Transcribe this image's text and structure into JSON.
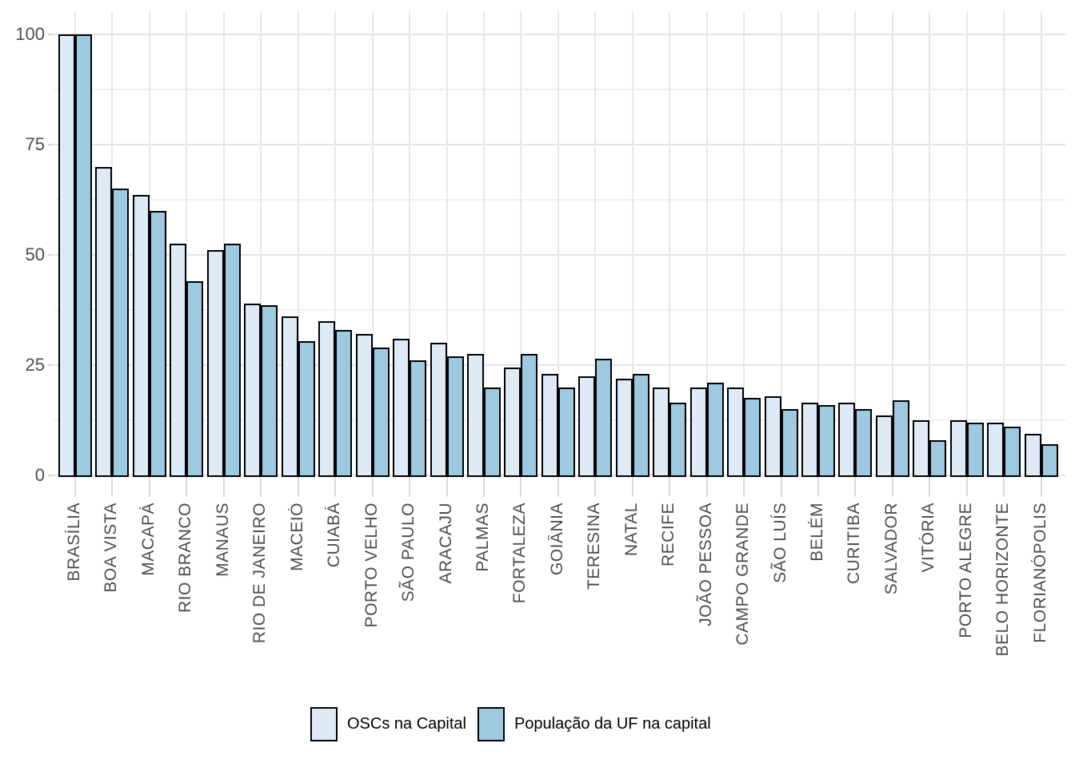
{
  "chart_data": {
    "type": "bar",
    "title": "",
    "xlabel": "",
    "ylabel": "",
    "ylim": [
      0,
      100
    ],
    "yticks": [
      0,
      25,
      50,
      75,
      100
    ],
    "yticks_minor": [
      12.5,
      37.5,
      62.5,
      87.5
    ],
    "grid": "on",
    "legend_position": "bottom",
    "categories": [
      "BRASÍLIA",
      "BOA VISTA",
      "MACAPÁ",
      "RIO BRANCO",
      "MANAUS",
      "RIO DE JANEIRO",
      "MACEIÓ",
      "CUIABÁ",
      "PORTO VELHO",
      "SÃO PAULO",
      "ARACAJU",
      "PALMAS",
      "FORTALEZA",
      "GOIÂNIA",
      "TERESINA",
      "NATAL",
      "RECIFE",
      "JOÃO PESSOA",
      "CAMPO GRANDE",
      "SÃO LUÍS",
      "BELÉM",
      "CURITIBA",
      "SALVADOR",
      "VITÓRIA",
      "PORTO ALEGRE",
      "BELO HORIZONTE",
      "FLORIANÓPOLIS"
    ],
    "series": [
      {
        "name": "OSCs na Capital",
        "color": "#deebf7",
        "values": [
          100,
          70,
          63.5,
          52.5,
          51,
          39,
          36,
          35,
          32,
          31,
          30,
          27.5,
          24.5,
          23,
          22.5,
          22,
          20,
          20,
          20,
          18,
          16.5,
          16.5,
          13.5,
          12.5,
          12.5,
          12,
          9.5
        ]
      },
      {
        "name": "População da UF na capital",
        "color": "#9ecae1",
        "values": [
          100,
          65,
          60,
          44,
          52.5,
          38.5,
          30.5,
          33,
          29,
          26,
          27,
          20,
          27.5,
          20,
          26.5,
          23,
          16.5,
          21,
          17.5,
          15,
          16,
          15,
          17,
          8,
          12,
          11,
          7
        ]
      }
    ],
    "bar_border_color": "#000000",
    "axis_text_color": "#4d4d4d"
  }
}
